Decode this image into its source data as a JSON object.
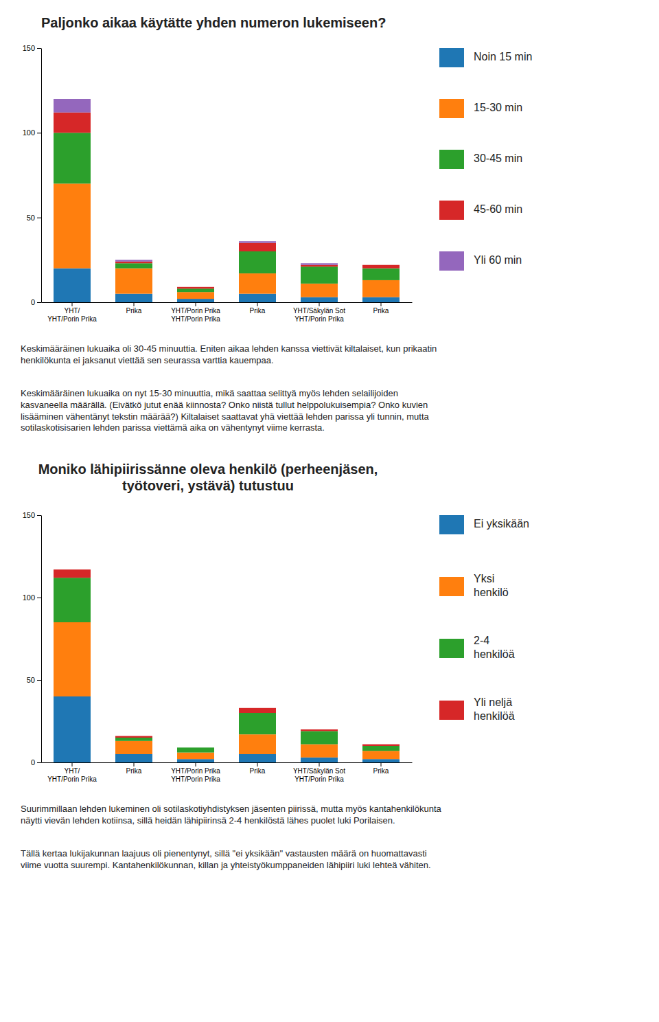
{
  "chart_data": [
    {
      "type": "bar",
      "stacked": true,
      "grid": false,
      "legend": "right",
      "title": "Paljonko aikaa käytätte yhden numeron lukemiseen?",
      "categories": [
        "YHT/\nYHT/Porin Prika",
        "Prika",
        "YHT/Porin Prika\nYHT/Porin Prika",
        "Prika",
        "YHT/Säkylän Sot\nYHT/Porin Prika",
        "Prika"
      ],
      "series": [
        {
          "name": "Noin 15 min",
          "values": [
            20,
            5,
            2,
            5,
            3,
            3
          ]
        },
        {
          "name": "15-30 min",
          "values": [
            50,
            15,
            4,
            12,
            8,
            10
          ]
        },
        {
          "name": "30-45 min",
          "values": [
            30,
            3,
            2,
            13,
            10,
            7
          ]
        },
        {
          "name": "45-60 min",
          "values": [
            12,
            1,
            1,
            5,
            1,
            2
          ]
        },
        {
          "name": "Yli 60 min",
          "values": [
            8,
            1,
            0,
            1,
            1,
            0
          ]
        }
      ],
      "ylim": [
        0,
        150
      ],
      "yticks": [
        0,
        50,
        100,
        150
      ],
      "annotations": [
        "Keskimääräinen lukuaika oli 30-45 minuuttia. Eniten aikaa lehden kanssa viettivät kiltalaiset, kun prikaatin\nhenkilökunta ei jaksanut viettää sen seurassa varttia kauempaa.",
        "Keskimääräinen lukuaika on nyt 15-30 minuuttia, mikä saattaa selittyä myös lehden selailijoiden\nkasvaneella määrällä. (Eivätkö jutut enää kiinnosta? Onko niistä tullut helppolukuisempia? Onko kuvien\nlisääminen vähentänyt tekstin määrää?) Kiltalaiset saattavat yhä viettää lehden parissa yli tunnin, mutta\nsotilaskotisisarien lehden parissa viettämä aika on vähentynyt viime kerrasta."
      ]
    },
    {
      "type": "bar",
      "stacked": true,
      "grid": false,
      "legend": "right",
      "title": "Moniko lähipiirissänne oleva henkilö (perheenjäsen,\ntyötoveri, ystävä) tutustuu",
      "categories": [
        "YHT/\nYHT/Porin Prika",
        "Prika",
        "YHT/Porin Prika\nYHT/Porin Prika",
        "Prika",
        "YHT/Säkylän Sot\nYHT/Porin Prika",
        "Prika"
      ],
      "series": [
        {
          "name": "Ei yksikään",
          "values": [
            40,
            5,
            2,
            5,
            3,
            2
          ]
        },
        {
          "name": "Yksi\nhenkilö",
          "values": [
            45,
            8,
            4,
            12,
            8,
            5
          ]
        },
        {
          "name": "2-4\nhenkilöä",
          "values": [
            27,
            2,
            3,
            13,
            8,
            3
          ]
        },
        {
          "name": "Yli neljä\nhenkilöä",
          "values": [
            5,
            1,
            0,
            3,
            1,
            1
          ]
        }
      ],
      "ylim": [
        0,
        150
      ],
      "yticks": [
        0,
        50,
        100,
        150
      ],
      "annotations": [
        "Suurimmillaan lehden lukeminen oli sotilaskotiyhdistyksen jäsenten piirissä, mutta myös kantahenkilökunta\nnäytti vievän lehden kotiinsa, sillä heidän lähipiirinsä 2-4 henkilöstä lähes puolet luki Porilaisen.",
        "Tällä kertaa lukijakunnan laajuus oli pienentynyt, sillä \"ei yksikään\" vastausten määrä on huomattavasti\nviime vuotta suurempi. Kantahenkilökunnan, killan ja yhteistyökumppaneiden lähipiiri luki lehteä vähiten."
      ]
    }
  ]
}
